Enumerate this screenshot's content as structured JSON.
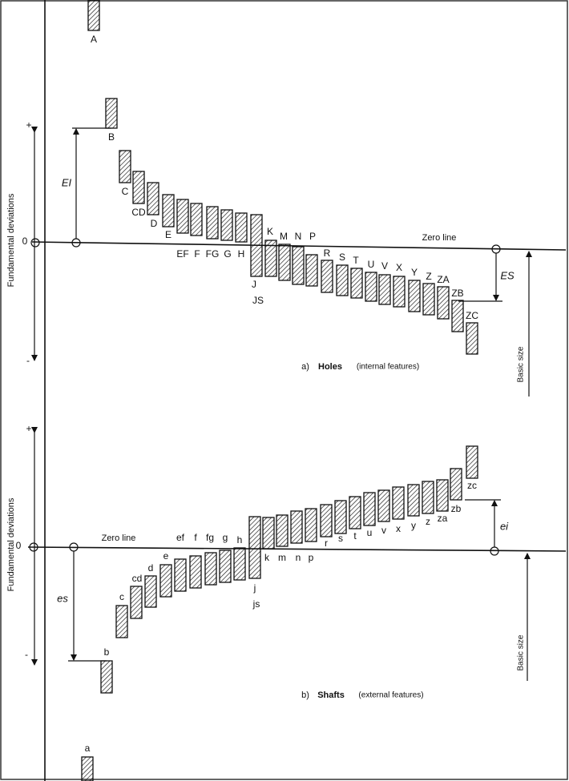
{
  "holes": {
    "axis_label": "Fundamental deviations",
    "plus": "+",
    "minus": "-",
    "zero": "0",
    "zero_line": "Zero line",
    "lower_deviation": "EI",
    "upper_deviation": "ES",
    "basic_size": "Basic size",
    "caption": {
      "number": "a)",
      "title": "Holes",
      "subtitle": "(internal features)"
    },
    "labels": [
      "A",
      "B",
      "C",
      "CD",
      "D",
      "E",
      "EF",
      "F",
      "FG",
      "G",
      "H",
      "J",
      "JS",
      "K",
      "M",
      "N",
      "P",
      "R",
      "S",
      "T",
      "U",
      "V",
      "X",
      "Y",
      "Z",
      "ZA",
      "ZB",
      "ZC"
    ]
  },
  "shafts": {
    "axis_label": "Fundamental deviations",
    "plus": "+",
    "minus": "-",
    "zero": "0",
    "zero_line": "Zero line",
    "upper_deviation": "es",
    "lower_deviation": "ei",
    "basic_size": "Basic size",
    "caption": {
      "number": "b)",
      "title": "Shafts",
      "subtitle": "(external features)"
    },
    "labels": [
      "a",
      "b",
      "c",
      "cd",
      "d",
      "e",
      "ef",
      "f",
      "fg",
      "g",
      "h",
      "j",
      "js",
      "k",
      "m",
      "n",
      "p",
      "r",
      "s",
      "t",
      "u",
      "v",
      "x",
      "y",
      "z",
      "za",
      "zb",
      "zc"
    ]
  }
}
